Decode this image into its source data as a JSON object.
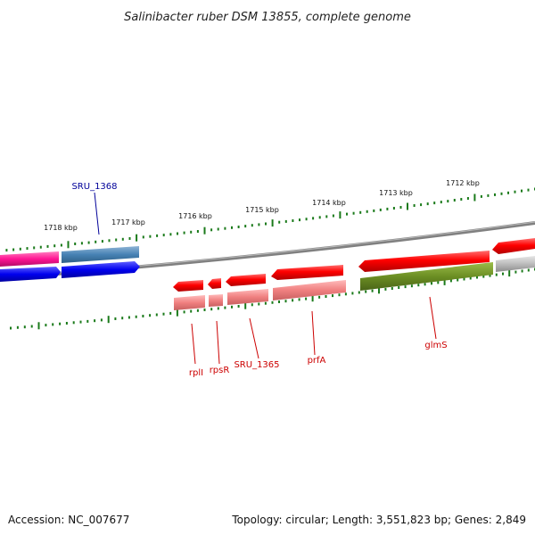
{
  "title": "Salinibacter ruber DSM 13855, complete genome",
  "footer": {
    "accession": "Accession: NC_007677",
    "summary": "Topology: circular; Length: 3,551,823 bp; Genes: 2,849"
  },
  "kbp_labels": [
    "1718 kbp",
    "1717 kbp",
    "1716 kbp",
    "1715 kbp",
    "1714 kbp",
    "1713 kbp",
    "1712 kbp"
  ],
  "genes": {
    "sru_1368": "SRU_1368",
    "rpll": "rplI",
    "rpsr": "rpsR",
    "sru_1365": "SRU_1365",
    "prfa": "prfA",
    "glms": "glmS"
  },
  "colors": {
    "backbone": "#808080",
    "tick": "#1a7a1a",
    "red": "#ff0000",
    "pink": "#f08080",
    "olive": "#6b8e23",
    "blue": "#0000ee",
    "steelblue": "#4682b4",
    "magenta": "#ff1493",
    "gray": "#bcbcbc",
    "label_red": "#cc0000",
    "label_blue": "#000099"
  }
}
